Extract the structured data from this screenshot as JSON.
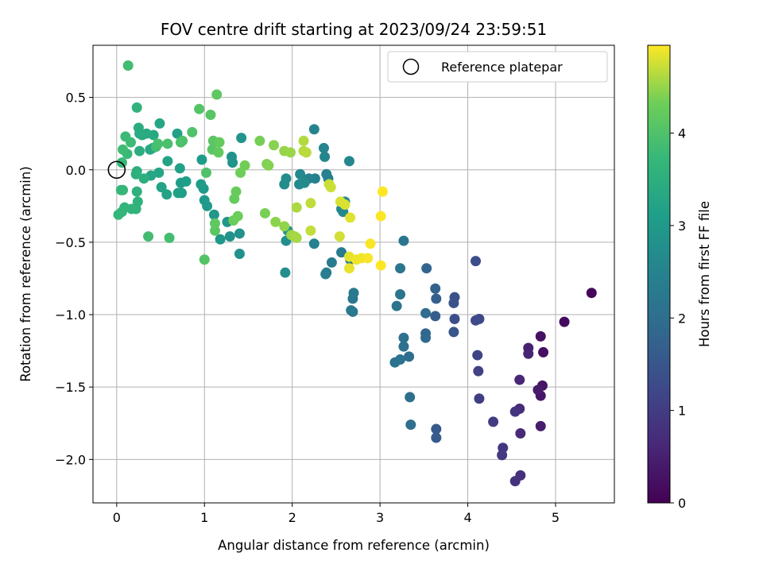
{
  "chart_data": {
    "type": "scatter",
    "title": "FOV centre drift starting at 2023/09/24 23:59:51",
    "xlabel": "Angular distance from reference (arcmin)",
    "ylabel": "Rotation from reference (arcmin)",
    "xlim": [
      -0.27,
      5.67
    ],
    "ylim": [
      -2.3,
      0.86
    ],
    "x_ticks": [
      0,
      1,
      2,
      3,
      4,
      5
    ],
    "x_tick_labels": [
      "0",
      "1",
      "2",
      "3",
      "4",
      "5"
    ],
    "y_ticks": [
      -2.0,
      -1.5,
      -1.0,
      -0.5,
      0.0,
      0.5
    ],
    "y_tick_labels": [
      "−2.0",
      "−1.5",
      "−1.0",
      "−0.5",
      "0.0",
      "0.5"
    ],
    "grid": true,
    "legend": {
      "placement": "top-right",
      "entries": [
        {
          "label": "Reference platepar",
          "marker": "open-circle"
        }
      ]
    },
    "reference_point": {
      "x": 0.0,
      "y": 0.0
    },
    "colorbar": {
      "label": "Hours from first FF file",
      "colormap": "viridis",
      "range": [
        0,
        4.95
      ],
      "ticks": [
        0,
        1,
        2,
        3,
        4
      ],
      "tick_labels": [
        "0",
        "1",
        "2",
        "3",
        "4"
      ]
    },
    "points": [
      [
        5.41,
        -0.85,
        0.1
      ],
      [
        5.1,
        -1.05,
        0.15
      ],
      [
        4.86,
        -1.26,
        0.2
      ],
      [
        4.83,
        -1.15,
        0.25
      ],
      [
        4.85,
        -1.49,
        0.3
      ],
      [
        4.83,
        -1.56,
        0.35
      ],
      [
        4.8,
        -1.52,
        0.4
      ],
      [
        4.83,
        -1.77,
        0.45
      ],
      [
        4.69,
        -1.23,
        0.5
      ],
      [
        4.69,
        -1.27,
        0.55
      ],
      [
        4.59,
        -1.45,
        0.6
      ],
      [
        4.6,
        -1.82,
        0.65
      ],
      [
        4.59,
        -1.65,
        0.7
      ],
      [
        4.6,
        -2.11,
        0.75
      ],
      [
        4.54,
        -2.15,
        0.8
      ],
      [
        4.54,
        -1.67,
        0.85
      ],
      [
        4.4,
        -1.92,
        0.9
      ],
      [
        4.39,
        -1.97,
        0.95
      ],
      [
        4.29,
        -1.74,
        1.0
      ],
      [
        4.13,
        -1.58,
        1.05
      ],
      [
        4.12,
        -1.39,
        1.1
      ],
      [
        4.11,
        -1.28,
        1.15
      ],
      [
        4.13,
        -1.03,
        1.2
      ],
      [
        4.09,
        -1.04,
        1.25
      ],
      [
        4.09,
        -0.63,
        1.3
      ],
      [
        3.85,
        -1.03,
        1.35
      ],
      [
        3.85,
        -0.88,
        1.4
      ],
      [
        3.84,
        -0.92,
        1.45
      ],
      [
        3.84,
        -1.12,
        1.5
      ],
      [
        3.64,
        -1.79,
        1.55
      ],
      [
        3.64,
        -1.85,
        1.6
      ],
      [
        3.63,
        -1.01,
        1.65
      ],
      [
        3.64,
        -0.89,
        1.7
      ],
      [
        3.63,
        -0.82,
        1.75
      ],
      [
        3.53,
        -0.68,
        1.8
      ],
      [
        3.52,
        -1.13,
        1.85
      ],
      [
        3.52,
        -1.16,
        1.9
      ],
      [
        3.52,
        -0.99,
        1.95
      ],
      [
        3.33,
        -1.29,
        2.0
      ],
      [
        3.34,
        -1.57,
        2.02
      ],
      [
        3.35,
        -1.76,
        2.04
      ],
      [
        3.27,
        -1.22,
        2.06
      ],
      [
        3.27,
        -1.16,
        2.08
      ],
      [
        3.23,
        -1.31,
        2.1
      ],
      [
        3.17,
        -1.33,
        2.12
      ],
      [
        3.19,
        -0.94,
        2.14
      ],
      [
        3.23,
        -0.86,
        2.16
      ],
      [
        3.23,
        -0.68,
        2.18
      ],
      [
        3.27,
        -0.49,
        2.2
      ],
      [
        2.69,
        -0.98,
        2.22
      ],
      [
        2.69,
        -0.89,
        2.24
      ],
      [
        2.67,
        -0.97,
        2.26
      ],
      [
        2.7,
        -0.85,
        2.28
      ],
      [
        2.56,
        -0.57,
        2.3
      ],
      [
        2.66,
        -0.62,
        2.32
      ],
      [
        2.45,
        -0.64,
        2.34
      ],
      [
        2.39,
        -0.71,
        2.36
      ],
      [
        2.38,
        -0.72,
        2.38
      ],
      [
        2.41,
        -0.06,
        2.4
      ],
      [
        2.39,
        -0.03,
        2.42
      ],
      [
        2.25,
        -0.51,
        2.44
      ],
      [
        2.26,
        -0.06,
        2.46
      ],
      [
        2.19,
        -0.06,
        2.48
      ],
      [
        2.25,
        0.28,
        2.5
      ],
      [
        2.36,
        0.15,
        2.52
      ],
      [
        2.37,
        0.09,
        2.54
      ],
      [
        2.65,
        0.06,
        2.56
      ],
      [
        2.56,
        -0.27,
        2.58
      ],
      [
        2.6,
        -0.22,
        2.6
      ],
      [
        2.58,
        -0.29,
        2.62
      ],
      [
        2.09,
        -0.03,
        2.64
      ],
      [
        2.08,
        -0.1,
        2.66
      ],
      [
        2.14,
        -0.09,
        2.68
      ],
      [
        1.93,
        -0.06,
        2.7
      ],
      [
        1.91,
        -0.1,
        2.72
      ],
      [
        1.92,
        -0.71,
        2.74
      ],
      [
        1.93,
        -0.49,
        2.76
      ],
      [
        1.95,
        -0.42,
        2.78
      ],
      [
        1.4,
        -0.58,
        2.8
      ],
      [
        1.4,
        -0.44,
        2.82
      ],
      [
        1.29,
        -0.46,
        2.84
      ],
      [
        1.31,
        0.09,
        2.86
      ],
      [
        1.32,
        0.05,
        2.88
      ],
      [
        1.42,
        0.22,
        2.9
      ],
      [
        1.26,
        -0.36,
        2.92
      ],
      [
        1.18,
        -0.48,
        2.94
      ],
      [
        1.11,
        -0.31,
        2.96
      ],
      [
        1.0,
        -0.21,
        2.98
      ],
      [
        1.03,
        -0.25,
        3.0
      ],
      [
        0.99,
        -0.13,
        3.02
      ],
      [
        0.96,
        -0.1,
        3.04
      ],
      [
        0.97,
        0.07,
        3.06
      ],
      [
        0.73,
        -0.09,
        3.08
      ],
      [
        0.79,
        -0.08,
        3.1
      ],
      [
        0.74,
        -0.16,
        3.12
      ],
      [
        0.7,
        -0.16,
        3.14
      ],
      [
        0.72,
        0.01,
        3.16
      ],
      [
        0.69,
        0.25,
        3.18
      ],
      [
        0.57,
        -0.17,
        3.2
      ],
      [
        0.58,
        0.06,
        3.22
      ],
      [
        0.51,
        -0.12,
        3.24
      ],
      [
        0.48,
        -0.02,
        3.26
      ],
      [
        0.49,
        0.32,
        3.28
      ],
      [
        0.39,
        -0.04,
        3.3
      ],
      [
        0.41,
        0.15,
        3.32
      ],
      [
        0.38,
        0.14,
        3.34
      ],
      [
        0.42,
        0.24,
        3.36
      ],
      [
        0.34,
        0.25,
        3.38
      ],
      [
        0.29,
        0.24,
        3.4
      ],
      [
        0.26,
        0.25,
        3.42
      ],
      [
        0.25,
        0.29,
        3.44
      ],
      [
        0.26,
        0.13,
        3.46
      ],
      [
        0.31,
        -0.06,
        3.48
      ],
      [
        0.23,
        -0.01,
        3.5
      ],
      [
        0.22,
        -0.03,
        3.52
      ],
      [
        0.23,
        -0.15,
        3.54
      ],
      [
        0.24,
        -0.22,
        3.56
      ],
      [
        0.22,
        -0.27,
        3.58
      ],
      [
        0.23,
        0.43,
        3.6
      ],
      [
        0.17,
        -0.27,
        3.62
      ],
      [
        0.09,
        -0.26,
        3.64
      ],
      [
        0.06,
        -0.29,
        3.66
      ],
      [
        0.02,
        -0.31,
        3.68
      ],
      [
        0.07,
        -0.14,
        3.7
      ],
      [
        0.05,
        -0.14,
        3.72
      ],
      [
        0.06,
        0.05,
        3.74
      ],
      [
        0.12,
        0.11,
        3.76
      ],
      [
        0.1,
        0.23,
        3.78
      ],
      [
        0.16,
        0.19,
        3.8
      ],
      [
        0.07,
        0.14,
        3.82
      ],
      [
        0.13,
        0.72,
        3.84
      ],
      [
        0.36,
        -0.46,
        3.86
      ],
      [
        0.6,
        -0.47,
        3.88
      ],
      [
        0.45,
        0.16,
        3.9
      ],
      [
        0.47,
        0.18,
        3.92
      ],
      [
        0.58,
        0.18,
        3.94
      ],
      [
        0.73,
        0.19,
        3.96
      ],
      [
        0.75,
        0.2,
        3.98
      ],
      [
        0.86,
        0.26,
        4.0
      ],
      [
        1.02,
        -0.02,
        4.02
      ],
      [
        1.0,
        -0.62,
        4.04
      ],
      [
        0.94,
        0.42,
        4.06
      ],
      [
        1.07,
        0.38,
        4.08
      ],
      [
        1.09,
        0.14,
        4.1
      ],
      [
        1.1,
        0.2,
        4.12
      ],
      [
        1.12,
        -0.42,
        4.14
      ],
      [
        1.12,
        -0.37,
        4.16
      ],
      [
        1.14,
        0.52,
        4.18
      ],
      [
        1.16,
        0.12,
        4.2
      ],
      [
        1.17,
        0.19,
        4.22
      ],
      [
        1.34,
        -0.2,
        4.24
      ],
      [
        1.36,
        -0.15,
        4.26
      ],
      [
        1.33,
        -0.35,
        4.28
      ],
      [
        1.38,
        -0.32,
        4.3
      ],
      [
        1.41,
        -0.02,
        4.32
      ],
      [
        1.46,
        0.03,
        4.34
      ],
      [
        1.63,
        0.2,
        4.36
      ],
      [
        1.69,
        -0.3,
        4.38
      ],
      [
        1.71,
        0.04,
        4.4
      ],
      [
        1.73,
        0.03,
        4.42
      ],
      [
        1.79,
        0.17,
        4.44
      ],
      [
        1.81,
        -0.36,
        4.46
      ],
      [
        1.91,
        -0.39,
        4.48
      ],
      [
        1.91,
        0.13,
        4.5
      ],
      [
        1.98,
        0.12,
        4.52
      ],
      [
        1.99,
        -0.45,
        4.54
      ],
      [
        2.03,
        -0.46,
        4.56
      ],
      [
        2.05,
        -0.47,
        4.58
      ],
      [
        2.05,
        -0.26,
        4.6
      ],
      [
        2.13,
        0.2,
        4.62
      ],
      [
        2.13,
        0.13,
        4.64
      ],
      [
        2.16,
        0.12,
        4.66
      ],
      [
        2.21,
        -0.23,
        4.68
      ],
      [
        2.21,
        -0.42,
        4.7
      ],
      [
        2.42,
        -0.1,
        4.72
      ],
      [
        2.44,
        -0.12,
        4.74
      ],
      [
        2.54,
        -0.46,
        4.76
      ],
      [
        2.55,
        -0.22,
        4.78
      ],
      [
        2.6,
        -0.24,
        4.8
      ],
      [
        2.66,
        -0.33,
        4.82
      ],
      [
        2.65,
        -0.6,
        4.84
      ],
      [
        2.65,
        -0.68,
        4.86
      ],
      [
        2.73,
        -0.62,
        4.88
      ],
      [
        2.79,
        -0.61,
        4.9
      ],
      [
        2.86,
        -0.61,
        4.92
      ],
      [
        2.89,
        -0.51,
        4.93
      ],
      [
        3.01,
        -0.32,
        4.94
      ],
      [
        3.01,
        -0.66,
        4.95
      ],
      [
        3.03,
        -0.15,
        4.95
      ]
    ]
  }
}
